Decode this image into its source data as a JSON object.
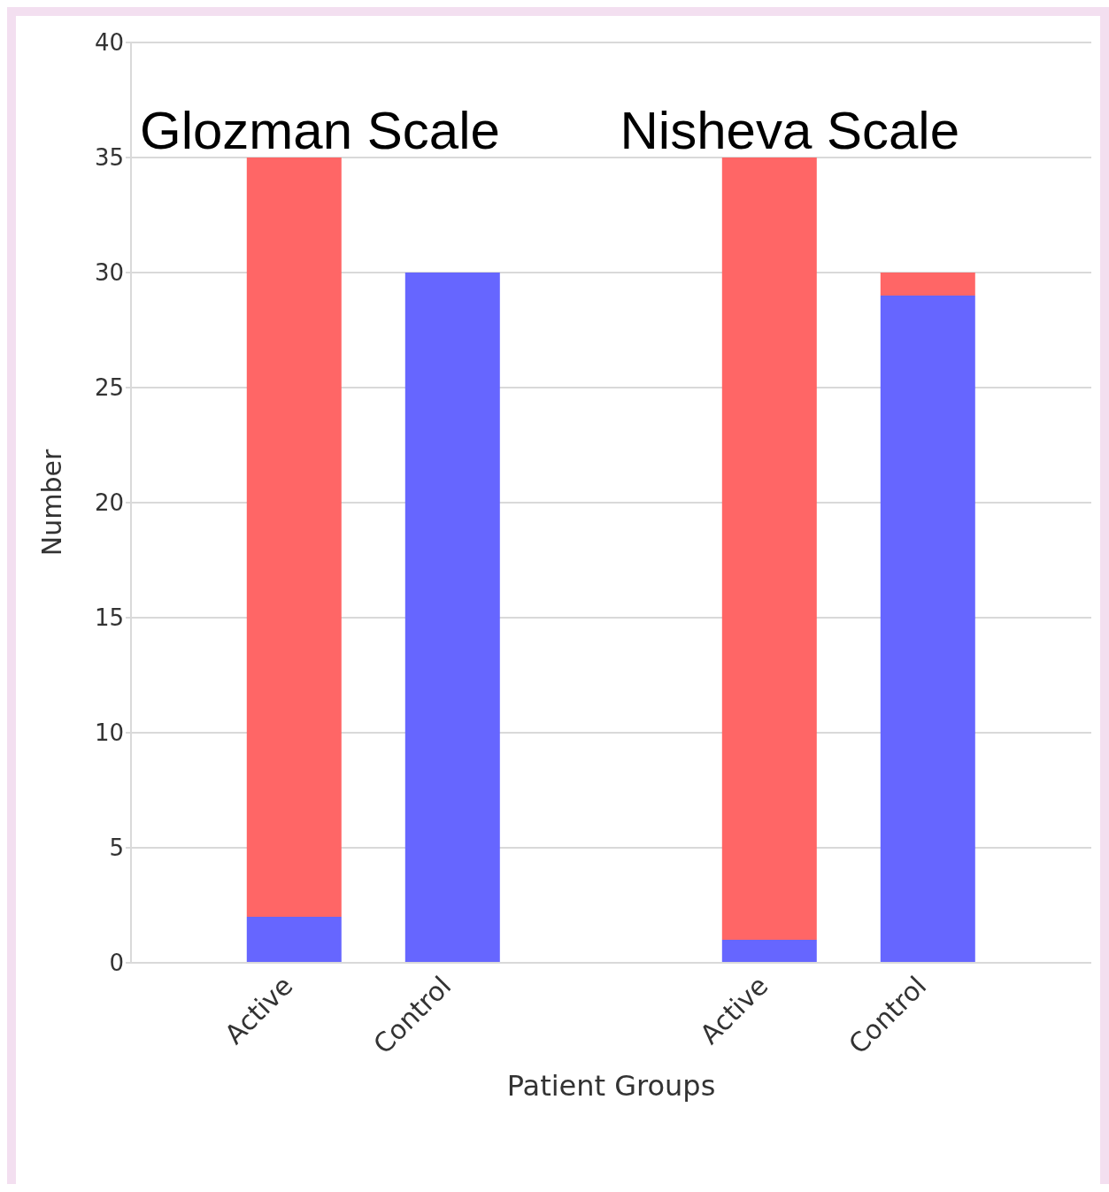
{
  "chart_data": {
    "type": "bar",
    "stacked": true,
    "xlabel": "Patient Groups",
    "ylabel": "Number",
    "categories": [
      "Active",
      "Control",
      null,
      "Active",
      "Control"
    ],
    "series": [
      {
        "color": "#6666ff",
        "values": [
          2,
          30,
          null,
          1,
          29
        ]
      },
      {
        "color": "#ff6666",
        "values": [
          33,
          0,
          null,
          34,
          1
        ]
      }
    ],
    "ylim": [
      0,
      40
    ],
    "yticks": [
      0,
      5,
      10,
      15,
      20,
      25,
      30,
      35,
      40
    ],
    "grid": "y",
    "annotations": [
      "Glozman Scale",
      "Nisheva Scale"
    ]
  }
}
